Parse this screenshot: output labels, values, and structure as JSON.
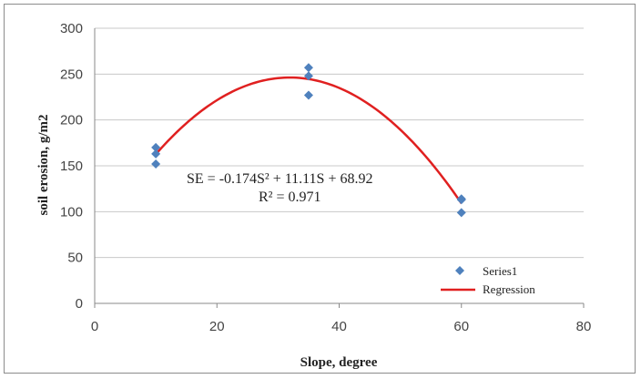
{
  "chart_data": {
    "type": "scatter",
    "title": "",
    "xlabel": "Slope, degree",
    "ylabel": "soil erosion, g/m2",
    "xlim": [
      0,
      80
    ],
    "ylim": [
      0,
      300
    ],
    "xticks": [
      0,
      20,
      40,
      60,
      80
    ],
    "yticks": [
      0,
      50,
      100,
      150,
      200,
      250,
      300
    ],
    "grid": "horizontal",
    "legend_position": "bottom-right",
    "series": [
      {
        "name": "Series1",
        "kind": "scatter",
        "marker": "diamond",
        "color": "#4f81bd",
        "points": [
          {
            "x": 10,
            "y": 170
          },
          {
            "x": 10,
            "y": 163
          },
          {
            "x": 10,
            "y": 152
          },
          {
            "x": 35,
            "y": 257
          },
          {
            "x": 35,
            "y": 248
          },
          {
            "x": 35,
            "y": 227
          },
          {
            "x": 60,
            "y": 114
          },
          {
            "x": 60,
            "y": 113
          },
          {
            "x": 60,
            "y": 99
          }
        ]
      },
      {
        "name": "Regression",
        "kind": "line",
        "color": "#e02020",
        "equation": {
          "a": -0.174,
          "b": 11.11,
          "c": 68.92
        },
        "x_range": [
          10,
          60
        ]
      }
    ],
    "annotations": {
      "equation_text": "SE = -0.174S² + 11.11S + 68.92",
      "r2_text": "R² = 0.971"
    }
  }
}
